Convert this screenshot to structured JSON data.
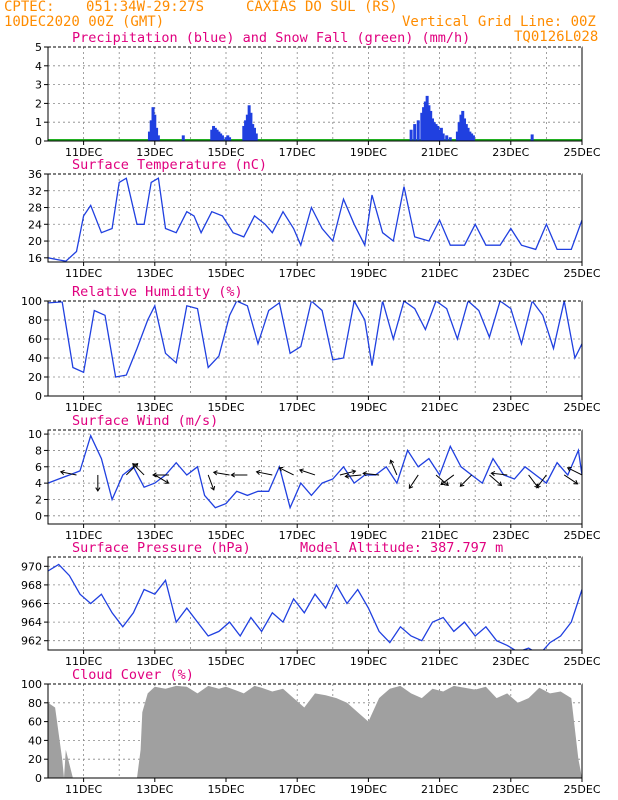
{
  "header": {
    "source": "CPTEC:",
    "coords": "051:34W-29:27S",
    "location": "CAXIAS DO SUL (RS)",
    "run": "10DEC2020 00Z (GMT)",
    "gridnote": "Vertical Grid Line: 00Z",
    "code": "TQ0126L028"
  },
  "x_axis": {
    "range_days": [
      10,
      25
    ],
    "tick_labels": [
      "11DEC",
      "13DEC",
      "15DEC",
      "17DEC",
      "19DEC",
      "21DEC",
      "23DEC",
      "25DEC"
    ],
    "tick_days": [
      11,
      13,
      15,
      17,
      19,
      21,
      23,
      25
    ]
  },
  "colors": {
    "line": "#2040e0",
    "precip": "#2040e0",
    "snow": "#20b020",
    "cloud": "#a0a0a0",
    "title": "#e0007f",
    "header": "#ff8c00"
  },
  "chart_data": [
    {
      "type": "bar",
      "title": "Precipitation (blue) and Snow Fall (green) (mm/h)",
      "ylim": [
        0,
        5
      ],
      "yticks": [
        0,
        1,
        2,
        3,
        4,
        5
      ],
      "series": [
        {
          "name": "Precipitation",
          "x_day": [
            12.85,
            12.9,
            12.95,
            13.0,
            13.05,
            13.1,
            13.8,
            14.6,
            14.65,
            14.7,
            14.75,
            14.8,
            14.85,
            14.9,
            15.0,
            15.05,
            15.1,
            15.5,
            15.55,
            15.6,
            15.65,
            15.7,
            15.75,
            15.8,
            15.85,
            20.2,
            20.3,
            20.4,
            20.5,
            20.55,
            20.6,
            20.65,
            20.7,
            20.75,
            20.8,
            20.85,
            20.9,
            20.95,
            21.0,
            21.05,
            21.1,
            21.2,
            21.3,
            21.5,
            21.55,
            21.6,
            21.65,
            21.7,
            21.75,
            21.8,
            21.85,
            21.9,
            21.95,
            23.6
          ],
          "values": [
            0.5,
            1.1,
            1.8,
            1.4,
            0.7,
            0.3,
            0.3,
            0.6,
            0.8,
            0.7,
            0.6,
            0.5,
            0.4,
            0.3,
            0.2,
            0.3,
            0.2,
            0.8,
            1.1,
            1.4,
            1.9,
            1.5,
            0.9,
            0.7,
            0.4,
            0.6,
            0.9,
            1.1,
            1.5,
            1.8,
            2.1,
            2.4,
            1.9,
            1.6,
            1.2,
            1.0,
            0.9,
            0.8,
            0.6,
            0.7,
            0.4,
            0.3,
            0.2,
            0.5,
            1.0,
            1.4,
            1.6,
            1.2,
            0.9,
            0.7,
            0.5,
            0.4,
            0.3,
            0.35
          ]
        }
      ]
    },
    {
      "type": "line",
      "title": "Surface Temperature (nC)",
      "ylim": [
        15,
        36
      ],
      "yticks": [
        16,
        20,
        24,
        28,
        32,
        36
      ],
      "series": [
        {
          "name": "Temperature",
          "x_day": [
            10.0,
            10.3,
            10.5,
            10.8,
            11.0,
            11.2,
            11.5,
            11.8,
            12.0,
            12.2,
            12.5,
            12.7,
            12.9,
            13.1,
            13.3,
            13.6,
            13.9,
            14.1,
            14.3,
            14.6,
            14.9,
            15.2,
            15.5,
            15.8,
            16.1,
            16.3,
            16.6,
            16.9,
            17.1,
            17.4,
            17.7,
            18.0,
            18.3,
            18.6,
            18.9,
            19.1,
            19.4,
            19.7,
            20.0,
            20.3,
            20.7,
            21.0,
            21.3,
            21.7,
            22.0,
            22.3,
            22.7,
            23.0,
            23.3,
            23.7,
            24.0,
            24.3,
            24.7,
            25.0
          ],
          "values": [
            16,
            15.5,
            15.2,
            17.5,
            26,
            28.5,
            22,
            23,
            34,
            35,
            24,
            24,
            34,
            35,
            23,
            22,
            27,
            26,
            22,
            27,
            26,
            22,
            21,
            26,
            24,
            22,
            27,
            23,
            19,
            28,
            23,
            20,
            30,
            24,
            19,
            31,
            22,
            20,
            33,
            21,
            20,
            25,
            19,
            19,
            24,
            19,
            19,
            23,
            19,
            18,
            24,
            18,
            18,
            25
          ]
        }
      ]
    },
    {
      "type": "line",
      "title": "Relative Humidity (%)",
      "ylim": [
        0,
        100
      ],
      "yticks": [
        0,
        20,
        40,
        60,
        80,
        100
      ],
      "series": [
        {
          "name": "Relative Humidity",
          "x_day": [
            10.0,
            10.4,
            10.7,
            11.0,
            11.3,
            11.6,
            11.9,
            12.2,
            12.5,
            12.8,
            13.0,
            13.3,
            13.6,
            13.9,
            14.2,
            14.5,
            14.8,
            15.1,
            15.3,
            15.6,
            15.9,
            16.2,
            16.5,
            16.8,
            17.1,
            17.4,
            17.7,
            18.0,
            18.3,
            18.6,
            18.9,
            19.1,
            19.4,
            19.7,
            20.0,
            20.3,
            20.6,
            20.9,
            21.2,
            21.5,
            21.8,
            22.1,
            22.4,
            22.7,
            23.0,
            23.3,
            23.6,
            23.9,
            24.2,
            24.5,
            24.8,
            25.0
          ],
          "values": [
            98,
            99,
            30,
            25,
            90,
            85,
            20,
            22,
            50,
            80,
            95,
            45,
            35,
            95,
            92,
            30,
            42,
            85,
            100,
            95,
            55,
            90,
            98,
            45,
            52,
            100,
            90,
            38,
            40,
            100,
            80,
            32,
            100,
            60,
            100,
            92,
            70,
            100,
            92,
            60,
            100,
            90,
            62,
            100,
            92,
            55,
            100,
            85,
            50,
            100,
            40,
            55
          ]
        }
      ]
    },
    {
      "type": "line",
      "title": "Surface Wind (m/s)",
      "ylim": [
        -1,
        10.5
      ],
      "yticks": [
        0,
        2,
        4,
        6,
        8,
        10
      ],
      "series": [
        {
          "name": "Wind speed",
          "x_day": [
            10.0,
            10.3,
            10.6,
            10.9,
            11.2,
            11.5,
            11.8,
            12.1,
            12.4,
            12.7,
            13.0,
            13.3,
            13.6,
            13.9,
            14.2,
            14.4,
            14.7,
            15.0,
            15.3,
            15.6,
            15.9,
            16.2,
            16.5,
            16.8,
            17.1,
            17.4,
            17.7,
            18.0,
            18.3,
            18.6,
            18.9,
            19.2,
            19.5,
            19.8,
            20.1,
            20.4,
            20.7,
            21.0,
            21.3,
            21.6,
            21.9,
            22.2,
            22.5,
            22.8,
            23.1,
            23.4,
            23.7,
            24.0,
            24.3,
            24.6,
            24.9,
            25.0
          ],
          "values": [
            4,
            4.5,
            5,
            5.5,
            9.8,
            7,
            2,
            5,
            6,
            3.5,
            4,
            5,
            6.5,
            5,
            6,
            2.5,
            1,
            1.5,
            3,
            2.5,
            3,
            3,
            6,
            1,
            4,
            2.5,
            4,
            4.5,
            6,
            4,
            5,
            5,
            6,
            4,
            8,
            6,
            7,
            5,
            8.5,
            6,
            5,
            4,
            7,
            5,
            4.5,
            6,
            5,
            4,
            6.5,
            5,
            8,
            5
          ]
        }
      ],
      "wind_vectors": {
        "x_day": [
          10.8,
          11.4,
          12.2,
          12.7,
          13.0,
          13.4,
          14.5,
          15.1,
          15.6,
          16.3,
          16.9,
          17.5,
          18.2,
          18.8,
          19.3,
          19.8,
          20.4,
          20.9,
          21.4,
          21.9,
          22.4,
          22.9,
          23.5,
          24.0,
          24.5,
          25.0
        ],
        "u": [
          -1,
          0,
          0.7,
          -0.8,
          0.5,
          -1,
          0.3,
          -0.6,
          -0.6,
          -0.5,
          -0.4,
          -0.6,
          0.8,
          -1,
          -1,
          -0.3,
          -0.2,
          0.7,
          -0.8,
          -0.6,
          0.8,
          -0.9,
          0.3,
          -0.3,
          0.6,
          -0.6
        ],
        "v": [
          0.2,
          -1,
          0.7,
          0.8,
          -0.3,
          0,
          -0.8,
          0.1,
          0,
          0.1,
          0.2,
          0.2,
          0.2,
          -0.1,
          0.1,
          0.7,
          -0.3,
          -0.6,
          -0.6,
          -0.6,
          -0.7,
          0.1,
          -0.4,
          -0.4,
          -0.4,
          0.3
        ]
      }
    },
    {
      "type": "line",
      "title": "Surface Pressure (hPa)",
      "subtitle": "Model Altitude: 387.797 m",
      "ylim": [
        961,
        971
      ],
      "yticks": [
        962,
        964,
        966,
        968,
        970
      ],
      "series": [
        {
          "name": "Pressure",
          "x_day": [
            10.0,
            10.3,
            10.6,
            10.9,
            11.2,
            11.5,
            11.8,
            12.1,
            12.4,
            12.7,
            13.0,
            13.3,
            13.6,
            13.9,
            14.2,
            14.5,
            14.8,
            15.1,
            15.4,
            15.7,
            16.0,
            16.3,
            16.6,
            16.9,
            17.2,
            17.5,
            17.8,
            18.1,
            18.4,
            18.7,
            19.0,
            19.3,
            19.6,
            19.9,
            20.2,
            20.5,
            20.8,
            21.1,
            21.4,
            21.7,
            22.0,
            22.3,
            22.6,
            22.9,
            23.2,
            23.5,
            23.8,
            24.1,
            24.4,
            24.7,
            25.0
          ],
          "values": [
            969.5,
            970.2,
            969,
            967,
            966,
            967,
            965,
            963.5,
            965,
            967.5,
            967,
            968.5,
            964,
            965.5,
            964,
            962.5,
            963,
            964,
            962.5,
            964.5,
            963,
            965,
            964,
            966.5,
            965,
            967,
            965.5,
            968,
            966,
            967.5,
            965.5,
            963,
            961.8,
            963.5,
            962.5,
            962,
            964,
            964.5,
            963,
            964,
            962.5,
            963.5,
            962,
            961.5,
            960.8,
            961.2,
            960.5,
            961.8,
            962.5,
            964,
            967.5
          ]
        }
      ]
    },
    {
      "type": "area",
      "title": "Cloud Cover (%)",
      "ylim": [
        0,
        100
      ],
      "yticks": [
        0,
        20,
        40,
        60,
        80,
        100
      ],
      "series": [
        {
          "name": "Cloud Cover",
          "x_day": [
            10.0,
            10.2,
            10.4,
            10.45,
            10.5,
            10.7,
            10.75,
            11.0,
            11.5,
            11.9,
            12.0,
            12.2,
            12.5,
            12.6,
            12.65,
            12.8,
            13.0,
            13.3,
            13.6,
            13.9,
            14.2,
            14.5,
            14.8,
            15.0,
            15.3,
            15.5,
            15.8,
            16.0,
            16.3,
            16.6,
            16.9,
            17.2,
            17.5,
            17.8,
            18.1,
            18.4,
            18.7,
            19.0,
            19.3,
            19.6,
            19.9,
            20.2,
            20.5,
            20.8,
            21.1,
            21.4,
            21.7,
            22.0,
            22.3,
            22.6,
            22.9,
            23.2,
            23.5,
            23.8,
            24.1,
            24.4,
            24.7,
            24.9,
            25.0
          ],
          "values": [
            80,
            75,
            20,
            0,
            30,
            0,
            0,
            0,
            0,
            0,
            0,
            0,
            0,
            30,
            70,
            90,
            97,
            95,
            98,
            97,
            90,
            98,
            95,
            97,
            93,
            90,
            98,
            96,
            92,
            95,
            85,
            75,
            90,
            88,
            85,
            80,
            70,
            60,
            85,
            95,
            98,
            90,
            85,
            95,
            92,
            98,
            96,
            94,
            97,
            85,
            90,
            80,
            85,
            96,
            90,
            92,
            85,
            20,
            0
          ]
        }
      ]
    }
  ]
}
